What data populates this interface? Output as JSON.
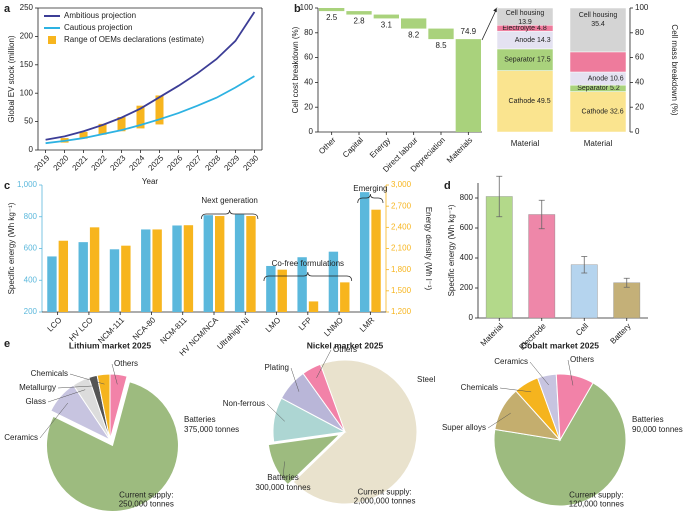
{
  "panel_labels": [
    "a",
    "b",
    "c",
    "d",
    "e"
  ],
  "chart_data": [
    {
      "type": "line",
      "ylabel": "Global EV stock (million)",
      "xlabel": "Year",
      "x": [
        2019,
        2020,
        2021,
        2022,
        2023,
        2024,
        2025,
        2026,
        2027,
        2028,
        2029,
        2030
      ],
      "xlim": [
        2018.6,
        2030.4
      ],
      "xticks": [
        2019,
        2020,
        2021,
        2022,
        2023,
        2024,
        2025,
        2026,
        2027,
        2028,
        2029,
        2030
      ],
      "ylim": [
        0,
        250
      ],
      "yticks": [
        0,
        50,
        100,
        150,
        200,
        250
      ],
      "legend": "upper left",
      "series": [
        {
          "name": "Ambitious projection",
          "color": "#3c3d96",
          "values": [
            18,
            24,
            33,
            44,
            57,
            73,
            93,
            113,
            135,
            160,
            192,
            243
          ]
        },
        {
          "name": "Cautious projection",
          "color": "#2db2e2",
          "values": [
            12,
            16,
            21,
            28,
            35,
            44,
            54,
            65,
            78,
            92,
            110,
            130
          ]
        }
      ],
      "ranges": {
        "name": "Range of OEMs declarations (estimate)",
        "color": "#f7b51e",
        "x": [
          2020,
          2021,
          2022,
          2023,
          2024,
          2025
        ],
        "low": [
          13,
          20,
          27,
          33,
          38,
          45
        ],
        "high": [
          21,
          32,
          46,
          58,
          78,
          96
        ]
      }
    },
    {
      "type": "waterfall",
      "ylabel": "Cell cost breakdown (%)",
      "categories": [
        "Other",
        "Capital",
        "Energy",
        "Direct labour",
        "Depreciation",
        "Materials"
      ],
      "values": [
        2.5,
        2.8,
        3.1,
        8.2,
        8.5,
        74.9
      ],
      "color": "#a9d27c",
      "ylim": [
        0,
        100
      ],
      "yticks": [
        0,
        20,
        40,
        60,
        80,
        100
      ]
    },
    {
      "type": "stacked_bar",
      "categories": [
        "Material"
      ],
      "ylim": [
        0,
        100
      ],
      "series": [
        {
          "name": "Cathode",
          "color": "#fae48f",
          "values": [
            49.5
          ]
        },
        {
          "name": "Separator",
          "color": "#a9d27c",
          "values": [
            17.5
          ]
        },
        {
          "name": "Anode",
          "color": "#e4e2f1",
          "values": [
            14.3
          ]
        },
        {
          "name": "Electrolyte",
          "color": "#ee7b9c",
          "values": [
            4.8
          ]
        },
        {
          "name": "Cell housing",
          "color": "#d4d4d4",
          "values": [
            13.9
          ]
        }
      ]
    },
    {
      "type": "stacked_bar",
      "categories": [
        "Material"
      ],
      "ylim": [
        0,
        100
      ],
      "yticks": [
        0,
        20,
        40,
        60,
        80,
        100
      ],
      "ylabel": "Cell mass breakdown (%)",
      "yaxis": "right",
      "series": [
        {
          "name": "Cathode",
          "color": "#fae48f",
          "values": [
            32.6
          ]
        },
        {
          "name": "Separator",
          "color": "#a9d27c",
          "values": [
            5.2
          ]
        },
        {
          "name": "Anode",
          "color": "#e4e2f1",
          "values": [
            10.6
          ]
        },
        {
          "name": "Electrolyte",
          "color": "#ee7b9c",
          "values": [
            16.2
          ]
        },
        {
          "name": "Cell housing",
          "color": "#d4d4d4",
          "values": [
            35.4
          ]
        }
      ]
    },
    {
      "type": "grouped_bar",
      "ylabel": "Specific energy (Wh kg⁻¹)",
      "y2label": "Energy density (Wh l⁻¹)",
      "categories": [
        "LCO",
        "HV LCO",
        "NCM-111",
        "NCA-80",
        "NCM-811",
        "HV NCM/NCA",
        "Ultrahigh Ni",
        "LMO",
        "LFP",
        "LNMO",
        "LMR"
      ],
      "ylim": [
        200,
        1000
      ],
      "yticks": [
        200,
        400,
        600,
        800,
        {
          "value": 1000,
          "label": "1,000"
        }
      ],
      "y2lim": [
        1200,
        3000
      ],
      "y2ticks": [
        {
          "value": 1200,
          "label": "1,200"
        },
        {
          "value": 1500,
          "label": "1,500"
        },
        {
          "value": 1800,
          "label": "1,800"
        },
        {
          "value": 2100,
          "label": "2,100"
        },
        {
          "value": 2400,
          "label": "2,400"
        },
        {
          "value": 2700,
          "label": "2,700"
        },
        {
          "value": 3000,
          "label": "3,000"
        }
      ],
      "series": [
        {
          "color": "#5bb8dc",
          "values": [
            550,
            640,
            595,
            720,
            745,
            810,
            815,
            490,
            545,
            580,
            955
          ]
        },
        {
          "color": "#f7b51e",
          "axis": "y2",
          "values": [
            2210,
            2400,
            2140,
            2370,
            2430,
            2560,
            2560,
            1800,
            1350,
            1620,
            2650
          ]
        }
      ],
      "annotations": [
        "Next generation",
        "Co-free formulations",
        "Emerging"
      ]
    },
    {
      "type": "bar",
      "ylabel": "Specific energy (Wh kg⁻¹)",
      "categories": [
        "Material",
        "Electrode",
        "Cell",
        "Battery"
      ],
      "values": [
        810,
        690,
        355,
        235
      ],
      "errors": [
        135,
        95,
        55,
        30
      ],
      "colors": [
        "#b3d98a",
        "#ee87a9",
        "#b5d4ee",
        "#c4b078"
      ],
      "ylim": [
        0,
        900
      ],
      "yticks": [
        0,
        200,
        400,
        600,
        800
      ]
    },
    {
      "type": "pie",
      "title": "Lithium market 2025",
      "categories": [
        "Batteries",
        "Ceramics",
        "Glass",
        "Metallurgy",
        "Chemicals",
        "Others"
      ],
      "values": [
        375000,
        40000,
        20000,
        10000,
        15000,
        20000
      ],
      "value_labels": [
        "375,000 tonnes",
        null,
        null,
        null,
        null,
        null
      ],
      "colors": [
        "#9dbb7f",
        "#c7c4e0",
        "#dcdcdc",
        "#555555",
        "#f5b41e",
        "#f282a8"
      ],
      "annotation": [
        "Current supply:",
        "250,000 tonnes"
      ]
    },
    {
      "type": "pie",
      "title": "Nickel market 2025",
      "categories": [
        "Steel",
        "Batteries",
        "Non-ferrous",
        "Plating",
        "Others"
      ],
      "values": [
        2050000,
        300000,
        300000,
        220000,
        130000
      ],
      "value_labels": [
        null,
        "300,000 tonnes",
        null,
        null,
        null
      ],
      "colors": [
        "#e9e2cd",
        "#9dbb7f",
        "#add6d3",
        "#b9b6d8",
        "#f282a8"
      ],
      "annotation": [
        "Current supply:",
        "2,000,000 tonnes"
      ]
    },
    {
      "type": "pie",
      "title": "Cobalt market 2025",
      "categories": [
        "Batteries",
        "Super alloys",
        "Chemicals",
        "Ceramics",
        "Others"
      ],
      "values": [
        90000,
        14000,
        8000,
        6000,
        12000
      ],
      "value_labels": [
        "90,000 tonnes",
        null,
        null,
        null,
        null
      ],
      "colors": [
        "#9dbb7f",
        "#c4ae6e",
        "#f5b41e",
        "#c7c4e0",
        "#f282a8"
      ],
      "annotation": [
        "Current supply:",
        "120,000 tonnes"
      ]
    }
  ]
}
